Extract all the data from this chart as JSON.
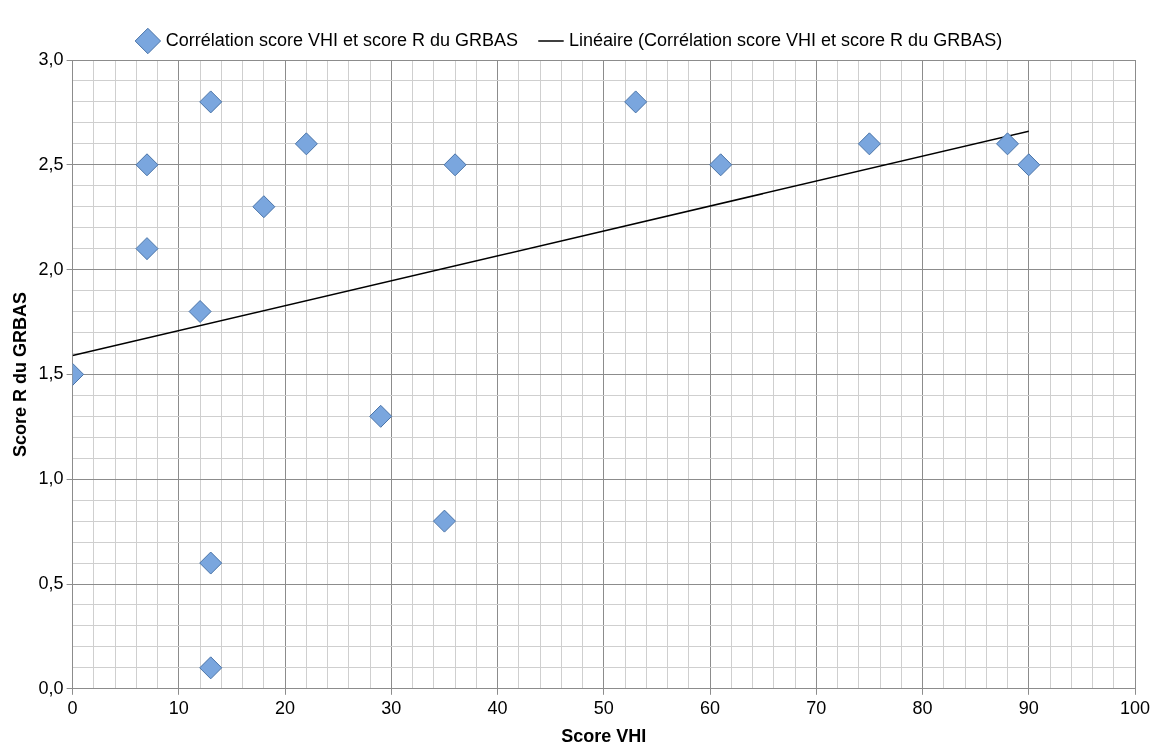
{
  "chart_data": {
    "type": "scatter",
    "xlabel": "Score VHI",
    "ylabel": "Score R du GRBAS",
    "xlim": [
      0,
      100
    ],
    "xticks": [
      0,
      {
        "value": 2,
        "label": null
      },
      {
        "value": 4,
        "label": null
      },
      {
        "value": 6,
        "label": null
      },
      {
        "value": 8,
        "label": null
      },
      10,
      {
        "value": 12,
        "label": null
      },
      {
        "value": 14,
        "label": null
      },
      {
        "value": 16,
        "label": null
      },
      {
        "value": 18,
        "label": null
      },
      20,
      {
        "value": 22,
        "label": null
      },
      {
        "value": 24,
        "label": null
      },
      {
        "value": 26,
        "label": null
      },
      {
        "value": 28,
        "label": null
      },
      30,
      {
        "value": 32,
        "label": null
      },
      {
        "value": 34,
        "label": null
      },
      {
        "value": 36,
        "label": null
      },
      {
        "value": 38,
        "label": null
      },
      40,
      {
        "value": 42,
        "label": null
      },
      {
        "value": 44,
        "label": null
      },
      {
        "value": 46,
        "label": null
      },
      {
        "value": 48,
        "label": null
      },
      50,
      {
        "value": 52,
        "label": null
      },
      {
        "value": 54,
        "label": null
      },
      {
        "value": 56,
        "label": null
      },
      {
        "value": 58,
        "label": null
      },
      60,
      {
        "value": 62,
        "label": null
      },
      {
        "value": 64,
        "label": null
      },
      {
        "value": 66,
        "label": null
      },
      {
        "value": 68,
        "label": null
      },
      70,
      {
        "value": 72,
        "label": null
      },
      {
        "value": 74,
        "label": null
      },
      {
        "value": 76,
        "label": null
      },
      {
        "value": 78,
        "label": null
      },
      80,
      {
        "value": 82,
        "label": null
      },
      {
        "value": 84,
        "label": null
      },
      {
        "value": 86,
        "label": null
      },
      {
        "value": 88,
        "label": null
      },
      90,
      {
        "value": 92,
        "label": null
      },
      {
        "value": 94,
        "label": null
      },
      {
        "value": 96,
        "label": null
      },
      {
        "value": 98,
        "label": null
      },
      100
    ],
    "ylim": [
      0,
      3
    ],
    "yticks": [
      {
        "value": 0,
        "label": "0,0"
      },
      {
        "value": 0.1,
        "label": null
      },
      {
        "value": 0.2,
        "label": null
      },
      {
        "value": 0.3,
        "label": null
      },
      {
        "value": 0.4,
        "label": null
      },
      {
        "value": 0.5,
        "label": "0,5"
      },
      {
        "value": 0.6,
        "label": null
      },
      {
        "value": 0.7,
        "label": null
      },
      {
        "value": 0.8,
        "label": null
      },
      {
        "value": 0.9,
        "label": null
      },
      {
        "value": 1,
        "label": "1,0"
      },
      {
        "value": 1.1,
        "label": null
      },
      {
        "value": 1.2,
        "label": null
      },
      {
        "value": 1.3,
        "label": null
      },
      {
        "value": 1.4,
        "label": null
      },
      {
        "value": 1.5,
        "label": "1,5"
      },
      {
        "value": 1.6,
        "label": null
      },
      {
        "value": 1.7,
        "label": null
      },
      {
        "value": 1.8,
        "label": null
      },
      {
        "value": 1.9,
        "label": null
      },
      {
        "value": 2,
        "label": "2,0"
      },
      {
        "value": 2.1,
        "label": null
      },
      {
        "value": 2.2,
        "label": null
      },
      {
        "value": 2.3,
        "label": null
      },
      {
        "value": 2.4,
        "label": null
      },
      {
        "value": 2.5,
        "label": "2,5"
      },
      {
        "value": 2.6,
        "label": null
      },
      {
        "value": 2.7,
        "label": null
      },
      {
        "value": 2.8,
        "label": null
      },
      {
        "value": 2.9,
        "label": null
      },
      {
        "value": 3,
        "label": "3,0"
      }
    ],
    "grid": true,
    "legend": "top",
    "series": [
      {
        "name": "Corrélation score VHI et score R du GRBAS",
        "marker": "diamond",
        "color": "#7aa6de",
        "x": [
          0,
          7,
          7,
          12,
          13,
          13,
          13,
          18,
          22,
          29,
          35,
          36,
          53,
          61,
          75,
          88,
          90
        ],
        "values": [
          1.5,
          2.5,
          2.1,
          1.8,
          2.8,
          0.6,
          0.1,
          2.3,
          2.6,
          1.3,
          0.8,
          2.5,
          2.8,
          2.5,
          2.6,
          2.6,
          2.5
        ]
      },
      {
        "name": "Linéaire (Corrélation score VHI et score R du GRBAS)",
        "type": "line",
        "marker": "none",
        "line_style": "solid",
        "color": "#000000",
        "x": [
          0,
          90
        ],
        "values": [
          1.59,
          2.66
        ]
      }
    ]
  }
}
